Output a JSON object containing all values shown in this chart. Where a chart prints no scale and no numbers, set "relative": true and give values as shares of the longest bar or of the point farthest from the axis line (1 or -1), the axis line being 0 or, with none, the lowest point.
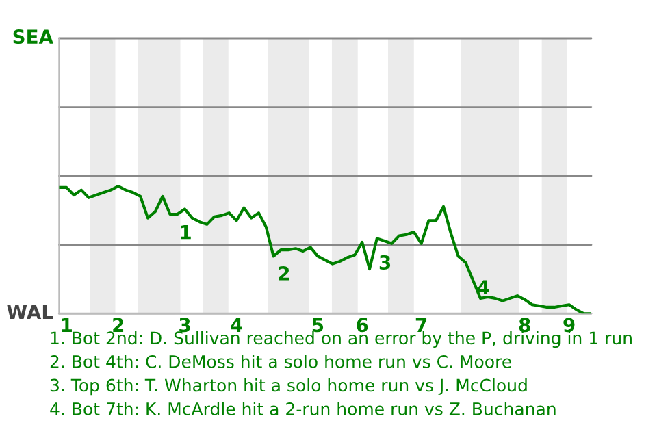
{
  "chart_data": {
    "type": "line",
    "relative": true,
    "categories": [
      null,
      "1",
      null,
      null,
      null,
      null,
      null,
      null,
      "2",
      null,
      null,
      null,
      null,
      null,
      null,
      null,
      null,
      "3",
      null,
      null,
      null,
      null,
      null,
      null,
      "4",
      null,
      null,
      null,
      null,
      null,
      null,
      null,
      null,
      null,
      null,
      "5",
      null,
      null,
      null,
      null,
      null,
      "6",
      null,
      null,
      null,
      null,
      null,
      null,
      null,
      "7",
      null,
      null,
      null,
      null,
      null,
      null,
      null,
      null,
      null,
      null,
      null,
      null,
      null,
      "8",
      null,
      null,
      null,
      null,
      null,
      "9",
      null,
      null,
      null
    ],
    "ref_lines": [
      {
        "axis": "y",
        "value": 0,
        "label": "WAL",
        "color": "#bbbbbb"
      },
      {
        "axis": "y",
        "value": 0.54,
        "label": null,
        "color": "#888888"
      },
      {
        "axis": "y",
        "value": 1.08,
        "label": null,
        "color": "#888888"
      },
      {
        "axis": "y",
        "value": 1.62,
        "label": null,
        "color": "#888888"
      },
      {
        "axis": "y",
        "value": 2.16,
        "label": "SEA",
        "color": "#888888"
      }
    ],
    "series": [
      {
        "color": "#008000",
        "values": [
          0.99,
          0.99,
          0.93,
          0.97,
          0.91,
          0.93,
          0.95,
          0.97,
          1,
          0.97,
          0.95,
          0.92,
          0.75,
          0.8,
          0.92,
          0.78,
          0.78,
          0.82,
          0.75,
          0.72,
          0.7,
          0.76,
          0.77,
          0.79,
          0.73,
          0.83,
          0.75,
          0.79,
          0.68,
          0.45,
          0.5,
          0.5,
          0.51,
          0.49,
          0.52,
          0.45,
          0.42,
          0.39,
          0.41,
          0.44,
          0.46,
          0.56,
          0.35,
          0.59,
          0.57,
          0.55,
          0.61,
          0.62,
          0.64,
          0.55,
          0.73,
          0.73,
          0.84,
          0.63,
          0.45,
          0.4,
          0.26,
          0.12,
          0.13,
          0.12,
          0.1,
          0.12,
          0.14,
          0.11,
          0.07,
          0.06,
          0.05,
          0.05,
          0.06,
          0.07,
          0.03,
          0,
          0
        ]
      }
    ],
    "annotations": [
      "1",
      "2",
      "3",
      "4",
      "1. Bot 2nd: D. Sullivan reached on an error by the P, driving in 1 run",
      "2. Bot 4th: C. DeMoss hit a solo home run vs C. Moore",
      "3. Top 6th: T. Wharton hit a solo home run vs J. McCloud",
      "4. Bot 7th: K. McArdle hit a 2-run home run vs Z. Buchanan"
    ]
  }
}
